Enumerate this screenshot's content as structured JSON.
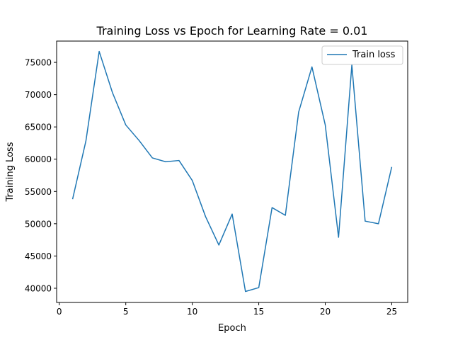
{
  "chart_data": {
    "type": "line",
    "title": "Training Loss vs Epoch for Learning Rate = 0.01",
    "xlabel": "Epoch",
    "ylabel": "Training Loss",
    "xlim": [
      -0.2,
      26.2
    ],
    "ylim": [
      37800,
      78300
    ],
    "xticks": [
      0,
      5,
      10,
      15,
      20,
      25
    ],
    "yticks": [
      40000,
      45000,
      50000,
      55000,
      60000,
      65000,
      70000,
      75000
    ],
    "grid": false,
    "legend_position": "top-right",
    "series": [
      {
        "name": "Train loss",
        "color": "#1f77b4",
        "x": [
          1,
          2,
          3,
          4,
          5,
          6,
          7,
          8,
          9,
          10,
          11,
          12,
          13,
          14,
          15,
          16,
          17,
          18,
          19,
          20,
          21,
          22,
          23,
          24,
          25
        ],
        "y": [
          53800,
          62800,
          76700,
          70300,
          65300,
          62900,
          60200,
          59600,
          59800,
          56700,
          51100,
          46700,
          51500,
          39500,
          40100,
          52500,
          51300,
          67300,
          74300,
          65300,
          47900,
          74600,
          50400,
          50000,
          58800
        ]
      }
    ]
  }
}
